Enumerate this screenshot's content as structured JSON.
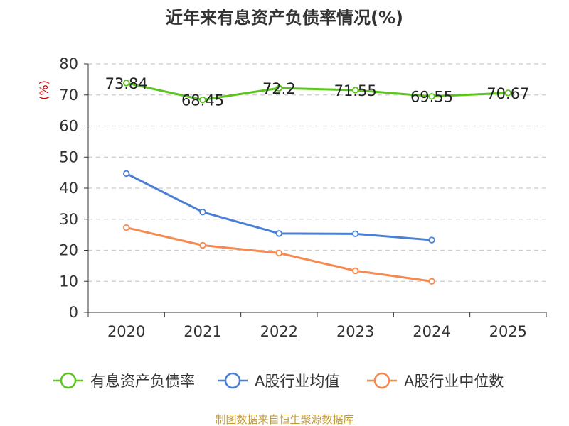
{
  "chart_data": {
    "type": "line",
    "title": "近年来有息资产负债率情况(%)",
    "ylabel": "(%)",
    "xlabel": "",
    "categories": [
      "2020",
      "2021",
      "2022",
      "2023",
      "2024",
      "2025"
    ],
    "ylim": [
      0,
      80
    ],
    "yticks": [
      0,
      10,
      20,
      30,
      40,
      50,
      60,
      70,
      80
    ],
    "grid": true,
    "legend_position": "bottom",
    "series": [
      {
        "name": "有息资产负债率",
        "color": "#5cc41f",
        "values": [
          73.84,
          68.45,
          72.2,
          71.55,
          69.55,
          70.67
        ],
        "labels": [
          "73.84",
          "68.45",
          "72.2",
          "71.55",
          "69.55",
          "70.67"
        ]
      },
      {
        "name": "A股行业均值",
        "color": "#4a7fd6",
        "values": [
          44.7,
          32.3,
          25.4,
          25.3,
          23.3,
          null
        ]
      },
      {
        "name": "A股行业中位数",
        "color": "#f5894f",
        "values": [
          27.3,
          21.6,
          19.1,
          13.4,
          10.0,
          null
        ]
      }
    ],
    "source": "制图数据来自恒生聚源数据库",
    "colors": {
      "ylabel": "#cc0000",
      "source": "#c09a3a",
      "grid": "#cccccc",
      "axis": "#333333"
    }
  }
}
